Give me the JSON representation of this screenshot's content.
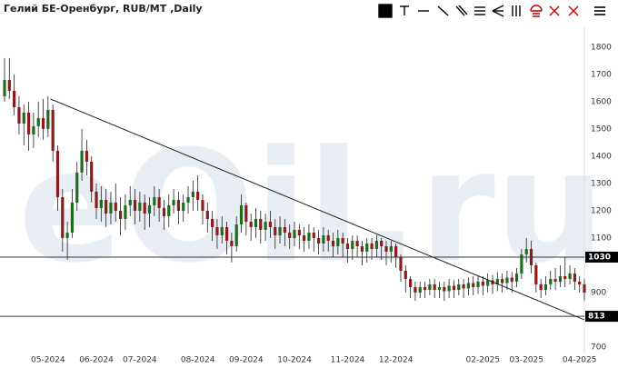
{
  "chart_data": {
    "type": "candlestick",
    "title": "Гелий БЕ-Оренбург, RUB/MT ,Daily",
    "watermark": "eOil.ru",
    "categories": [
      null,
      null,
      null,
      null,
      null,
      null,
      null,
      null,
      null,
      "05-2024",
      null,
      null,
      null,
      null,
      null,
      null,
      null,
      null,
      null,
      "06-2024",
      null,
      null,
      null,
      null,
      null,
      null,
      null,
      null,
      "07-2024",
      null,
      null,
      null,
      null,
      null,
      null,
      null,
      null,
      null,
      null,
      null,
      "08-2024",
      null,
      null,
      null,
      null,
      null,
      null,
      null,
      null,
      null,
      "09-2024",
      null,
      null,
      null,
      null,
      null,
      null,
      null,
      null,
      null,
      "10-2024",
      null,
      null,
      null,
      null,
      null,
      null,
      null,
      null,
      null,
      null,
      "11-2024",
      null,
      null,
      null,
      null,
      null,
      null,
      null,
      null,
      null,
      "12-2024",
      null,
      null,
      null,
      null,
      null,
      null,
      null,
      null,
      null,
      null,
      null,
      null,
      null,
      null,
      null,
      null,
      null,
      "02-2025",
      null,
      null,
      null,
      null,
      null,
      null,
      null,
      null,
      "03-2025",
      null,
      null,
      null,
      null,
      null,
      null,
      null,
      null,
      null,
      null,
      "04-2025",
      null
    ],
    "open": [
      1620,
      1680,
      1640,
      1580,
      1520,
      1560,
      1480,
      1510,
      1540,
      1500,
      1570,
      1420,
      1250,
      1100,
      1120,
      1230,
      1340,
      1420,
      1380,
      1270,
      1210,
      1240,
      1190,
      1230,
      1200,
      1170,
      1220,
      1240,
      1200,
      1230,
      1190,
      1220,
      1250,
      1210,
      1180,
      1220,
      1240,
      1200,
      1230,
      1250,
      1270,
      1240,
      1200,
      1170,
      1140,
      1110,
      1140,
      1090,
      1070,
      1150,
      1220,
      1160,
      1140,
      1170,
      1130,
      1160,
      1140,
      1110,
      1140,
      1120,
      1100,
      1130,
      1110,
      1090,
      1120,
      1100,
      1080,
      1110,
      1090,
      1070,
      1100,
      1080,
      1060,
      1090,
      1070,
      1050,
      1080,
      1060,
      1090,
      1070,
      1050,
      1070,
      1030,
      980,
      950,
      920,
      900,
      920,
      910,
      930,
      910,
      920,
      905,
      925,
      910,
      930,
      915,
      935,
      920,
      940,
      925,
      945,
      930,
      950,
      935,
      955,
      940,
      970,
      1040,
      1060,
      1000,
      930,
      910,
      930,
      950,
      940,
      960,
      950,
      970,
      940,
      930
    ],
    "close": [
      1680,
      1640,
      1580,
      1520,
      1560,
      1480,
      1510,
      1540,
      1500,
      1570,
      1420,
      1250,
      1100,
      1120,
      1230,
      1340,
      1420,
      1380,
      1270,
      1210,
      1240,
      1190,
      1230,
      1200,
      1170,
      1220,
      1240,
      1200,
      1230,
      1190,
      1220,
      1250,
      1210,
      1180,
      1220,
      1240,
      1200,
      1230,
      1250,
      1270,
      1240,
      1200,
      1170,
      1140,
      1110,
      1140,
      1090,
      1070,
      1150,
      1220,
      1160,
      1140,
      1170,
      1130,
      1160,
      1140,
      1110,
      1140,
      1120,
      1100,
      1130,
      1110,
      1090,
      1120,
      1100,
      1080,
      1110,
      1090,
      1070,
      1100,
      1080,
      1060,
      1090,
      1070,
      1050,
      1080,
      1060,
      1090,
      1070,
      1050,
      1070,
      1030,
      980,
      950,
      920,
      900,
      920,
      910,
      930,
      910,
      920,
      905,
      925,
      910,
      930,
      915,
      935,
      920,
      940,
      925,
      945,
      930,
      950,
      935,
      955,
      940,
      970,
      1040,
      1060,
      1000,
      930,
      910,
      930,
      950,
      940,
      960,
      950,
      970,
      940,
      930,
      900
    ],
    "high": [
      1760,
      1760,
      1700,
      1620,
      1590,
      1600,
      1560,
      1600,
      1610,
      1620,
      1590,
      1440,
      1280,
      1160,
      1280,
      1380,
      1500,
      1460,
      1400,
      1300,
      1290,
      1280,
      1270,
      1300,
      1250,
      1260,
      1290,
      1280,
      1270,
      1260,
      1250,
      1290,
      1280,
      1240,
      1260,
      1280,
      1270,
      1260,
      1290,
      1310,
      1330,
      1260,
      1230,
      1200,
      1170,
      1180,
      1160,
      1120,
      1180,
      1260,
      1230,
      1190,
      1210,
      1200,
      1190,
      1200,
      1170,
      1180,
      1170,
      1150,
      1160,
      1150,
      1140,
      1150,
      1140,
      1130,
      1140,
      1130,
      1120,
      1130,
      1120,
      1100,
      1110,
      1110,
      1090,
      1100,
      1100,
      1110,
      1100,
      1090,
      1090,
      1080,
      1040,
      1000,
      960,
      940,
      940,
      940,
      950,
      950,
      940,
      940,
      950,
      945,
      950,
      950,
      955,
      960,
      960,
      960,
      970,
      965,
      975,
      970,
      980,
      975,
      990,
      1060,
      1100,
      1090,
      1010,
      950,
      960,
      980,
      990,
      1000,
      1030,
      1000,
      990,
      960,
      950
    ],
    "low": [
      1600,
      1610,
      1550,
      1480,
      1440,
      1420,
      1430,
      1470,
      1460,
      1470,
      1380,
      1200,
      1050,
      1020,
      1100,
      1200,
      1310,
      1330,
      1230,
      1170,
      1160,
      1140,
      1150,
      1160,
      1110,
      1130,
      1180,
      1150,
      1160,
      1130,
      1140,
      1180,
      1160,
      1130,
      1140,
      1190,
      1150,
      1160,
      1190,
      1200,
      1200,
      1150,
      1120,
      1090,
      1060,
      1080,
      1040,
      1010,
      1050,
      1120,
      1110,
      1090,
      1100,
      1080,
      1090,
      1100,
      1060,
      1080,
      1070,
      1060,
      1070,
      1060,
      1050,
      1060,
      1050,
      1040,
      1050,
      1050,
      1030,
      1040,
      1030,
      1010,
      1020,
      1030,
      1000,
      1010,
      1020,
      1030,
      1020,
      1000,
      1010,
      990,
      940,
      900,
      880,
      870,
      880,
      880,
      890,
      880,
      880,
      870,
      880,
      880,
      890,
      880,
      890,
      890,
      895,
      890,
      900,
      895,
      905,
      900,
      910,
      900,
      920,
      950,
      1010,
      970,
      900,
      880,
      890,
      910,
      910,
      920,
      920,
      930,
      910,
      900,
      870
    ],
    "up_color": "#1e6b1e",
    "down_color": "#8e1b1b",
    "ylim": [
      680,
      1873
    ],
    "yticks": [
      700,
      900,
      1100,
      1200,
      1300,
      1400,
      1500,
      1600,
      1700,
      1800
    ],
    "levels": [
      1030,
      813
    ],
    "trendline": [
      1610,
      800
    ],
    "grid": false
  }
}
